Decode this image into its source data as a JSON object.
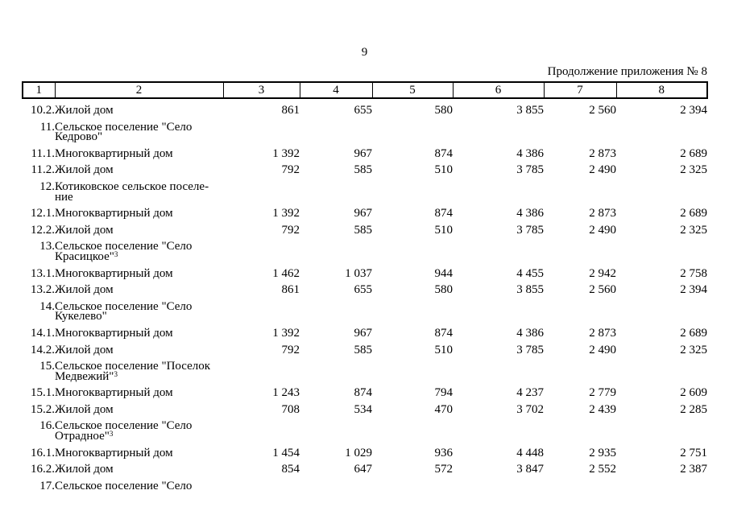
{
  "header": {
    "page_number": "9",
    "continuation": "Продолжение приложения № 8"
  },
  "table": {
    "columns": [
      "1",
      "2",
      "3",
      "4",
      "5",
      "6",
      "7",
      "8"
    ],
    "rows": [
      {
        "num": "10.2.",
        "label": "Жилой дом",
        "sup": "",
        "values": [
          "861",
          "655",
          "580",
          "3 855",
          "2 560",
          "2 394"
        ]
      },
      {
        "num": "11.",
        "label": "Сельское поселение \"Село\nКедрово\"",
        "sup": "",
        "values": [
          "",
          "",
          "",
          "",
          "",
          ""
        ]
      },
      {
        "num": "11.1.",
        "label": "Многоквартирный дом",
        "sup": "",
        "values": [
          "1 392",
          "967",
          "874",
          "4 386",
          "2 873",
          "2 689"
        ]
      },
      {
        "num": "11.2.",
        "label": "Жилой дом",
        "sup": "",
        "values": [
          "792",
          "585",
          "510",
          "3 785",
          "2 490",
          "2 325"
        ]
      },
      {
        "num": "12.",
        "label": "Котиковское сельское поселе-\nние",
        "sup": "",
        "values": [
          "",
          "",
          "",
          "",
          "",
          ""
        ]
      },
      {
        "num": "12.1.",
        "label": "Многоквартирный дом",
        "sup": "",
        "values": [
          "1 392",
          "967",
          "874",
          "4 386",
          "2 873",
          "2 689"
        ]
      },
      {
        "num": "12.2.",
        "label": "Жилой дом",
        "sup": "",
        "values": [
          "792",
          "585",
          "510",
          "3 785",
          "2 490",
          "2 325"
        ]
      },
      {
        "num": "13.",
        "label": "Сельское поселение \"Село\nКрасицкое\"",
        "sup": "3",
        "values": [
          "",
          "",
          "",
          "",
          "",
          ""
        ]
      },
      {
        "num": "13.1.",
        "label": "Многоквартирный дом",
        "sup": "",
        "values": [
          "1 462",
          "1 037",
          "944",
          "4 455",
          "2 942",
          "2 758"
        ]
      },
      {
        "num": "13.2.",
        "label": "Жилой дом",
        "sup": "",
        "values": [
          "861",
          "655",
          "580",
          "3 855",
          "2 560",
          "2 394"
        ]
      },
      {
        "num": "14.",
        "label": "Сельское поселение \"Село\nКукелево\"",
        "sup": "",
        "values": [
          "",
          "",
          "",
          "",
          "",
          ""
        ]
      },
      {
        "num": "14.1.",
        "label": "Многоквартирный дом",
        "sup": "",
        "values": [
          "1 392",
          "967",
          "874",
          "4 386",
          "2 873",
          "2 689"
        ]
      },
      {
        "num": "14.2.",
        "label": "Жилой дом",
        "sup": "",
        "values": [
          "792",
          "585",
          "510",
          "3 785",
          "2 490",
          "2 325"
        ]
      },
      {
        "num": "15.",
        "label": "Сельское поселение \"Поселок\nМедвежий\"",
        "sup": "3",
        "values": [
          "",
          "",
          "",
          "",
          "",
          ""
        ]
      },
      {
        "num": "15.1.",
        "label": "Многоквартирный дом",
        "sup": "",
        "values": [
          "1 243",
          "874",
          "794",
          "4 237",
          "2 779",
          "2 609"
        ]
      },
      {
        "num": "15.2.",
        "label": "Жилой дом",
        "sup": "",
        "values": [
          "708",
          "534",
          "470",
          "3 702",
          "2 439",
          "2 285"
        ]
      },
      {
        "num": "16.",
        "label": "Сельское поселение \"Село\nОтрадное\"",
        "sup": "3",
        "values": [
          "",
          "",
          "",
          "",
          "",
          ""
        ]
      },
      {
        "num": "16.1.",
        "label": "Многоквартирный дом",
        "sup": "",
        "values": [
          "1 454",
          "1 029",
          "936",
          "4 448",
          "2 935",
          "2 751"
        ]
      },
      {
        "num": "16.2.",
        "label": "Жилой дом",
        "sup": "",
        "values": [
          "854",
          "647",
          "572",
          "3 847",
          "2 552",
          "2 387"
        ]
      },
      {
        "num": "17.",
        "label": "Сельское поселение \"Село",
        "sup": "",
        "values": [
          "",
          "",
          "",
          "",
          "",
          ""
        ]
      }
    ]
  }
}
